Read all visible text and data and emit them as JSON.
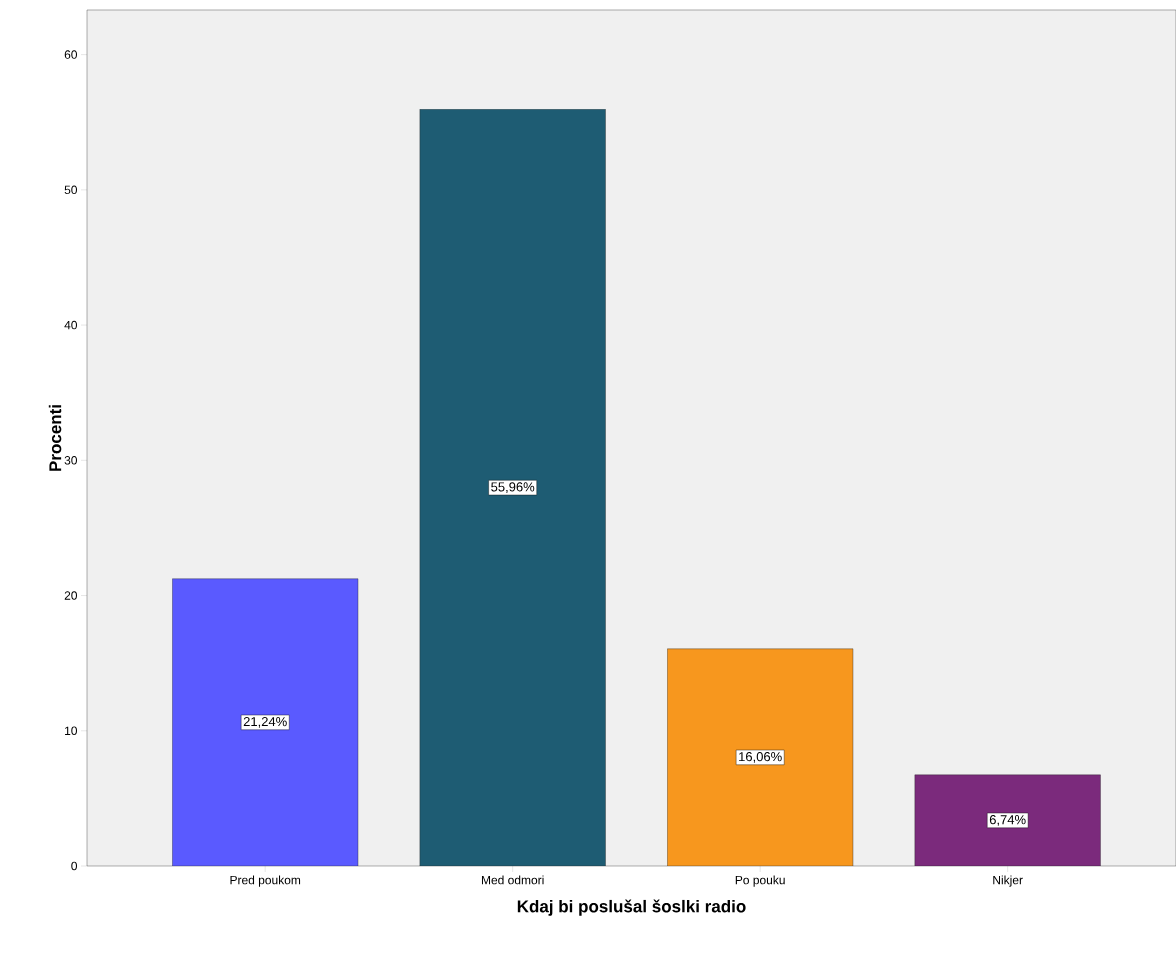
{
  "chart_data": {
    "type": "bar",
    "xlabel": "Kdaj bi poslušal šoslki radio",
    "ylabel": "Procenti",
    "categories": [
      "Pred poukom",
      "Med odmori",
      "Po pouku",
      "Nikjer"
    ],
    "values": [
      21.24,
      55.96,
      16.06,
      6.74
    ],
    "value_labels": [
      "21,24%",
      "55,96%",
      "16,06%",
      "6,74%"
    ],
    "colors": [
      "#5a5aff",
      "#1e5c73",
      "#f7971e",
      "#7b2a7c"
    ],
    "ylim": [
      0,
      63.3
    ],
    "yticks": [
      0,
      10,
      20,
      30,
      40,
      50,
      60
    ]
  }
}
